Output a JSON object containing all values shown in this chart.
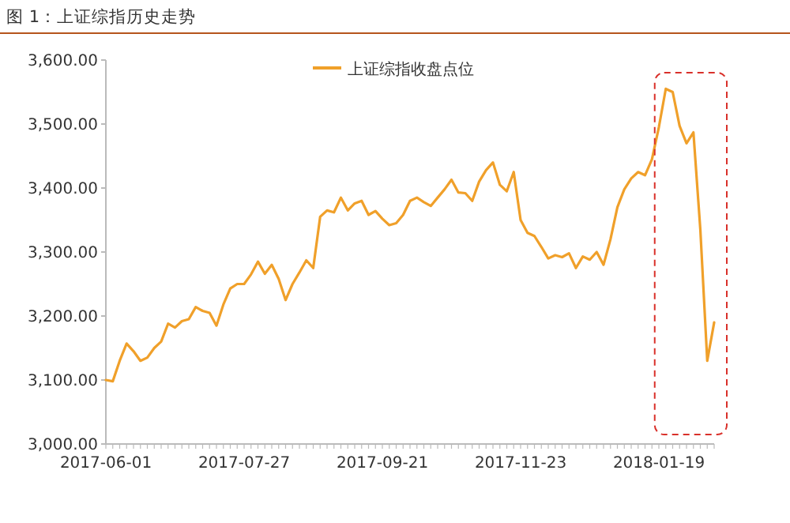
{
  "chart_data": {
    "type": "line",
    "title": "图 1：上证综指历史走势",
    "categories": [
      "2017-06-01",
      null,
      null,
      null,
      null,
      null,
      null,
      null,
      null,
      null,
      null,
      null,
      null,
      null,
      null,
      null,
      null,
      null,
      null,
      null,
      "2017-07-27",
      null,
      null,
      null,
      null,
      null,
      null,
      null,
      null,
      null,
      null,
      null,
      null,
      null,
      null,
      null,
      null,
      null,
      null,
      null,
      "2017-09-21",
      null,
      null,
      null,
      null,
      null,
      null,
      null,
      null,
      null,
      null,
      null,
      null,
      null,
      null,
      null,
      null,
      null,
      null,
      null,
      "2017-11-23",
      null,
      null,
      null,
      null,
      null,
      null,
      null,
      null,
      null,
      null,
      null,
      null,
      null,
      null,
      null,
      null,
      null,
      null,
      null,
      "2018-01-19",
      null,
      null,
      null,
      null,
      null,
      null,
      null,
      null
    ],
    "series": [
      {
        "name": "上证综指收盘点位",
        "color": "#f0a02a",
        "values": [
          3100,
          3098,
          3130,
          3157,
          3145,
          3130,
          3135,
          3150,
          3160,
          3188,
          3182,
          3192,
          3195,
          3214,
          3208,
          3205,
          3185,
          3218,
          3243,
          3250,
          3250,
          3265,
          3285,
          3266,
          3280,
          3258,
          3225,
          3250,
          3268,
          3287,
          3275,
          3355,
          3365,
          3362,
          3385,
          3365,
          3376,
          3380,
          3358,
          3364,
          3352,
          3342,
          3345,
          3358,
          3380,
          3385,
          3378,
          3372,
          3385,
          3398,
          3413,
          3393,
          3392,
          3380,
          3410,
          3428,
          3440,
          3405,
          3395,
          3425,
          3350,
          3330,
          3325,
          3308,
          3290,
          3295,
          3292,
          3298,
          3275,
          3293,
          3288,
          3300,
          3280,
          3320,
          3370,
          3398,
          3415,
          3425,
          3420,
          3445,
          3495,
          3555,
          3550,
          3497,
          3470,
          3487,
          3335,
          3130,
          3190
        ]
      }
    ],
    "ylim": [
      3000,
      3600
    ],
    "yticks": [
      {
        "value": 3000,
        "label": "3,000.00"
      },
      {
        "value": 3100,
        "label": "3,100.00"
      },
      {
        "value": 3200,
        "label": "3,200.00"
      },
      {
        "value": 3300,
        "label": "3,300.00"
      },
      {
        "value": 3400,
        "label": "3,400.00"
      },
      {
        "value": 3500,
        "label": "3,500.00"
      },
      {
        "value": 3600,
        "label": "3,600.00"
      }
    ],
    "grid": false,
    "legend": "top",
    "marker": "none",
    "line_style": "solid"
  }
}
